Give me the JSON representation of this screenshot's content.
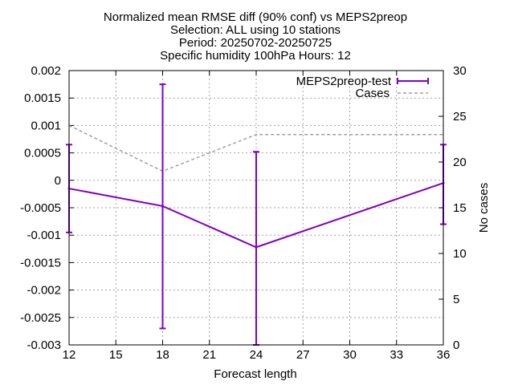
{
  "chart_data": {
    "type": "line",
    "title_lines": [
      "Normalized mean RMSE diff (90% conf) vs MEPS2preop",
      "Selection: ALL using    10 stations",
      "Period: 20250702-20250725",
      "Specific humidity 100hPa   Hours: 12"
    ],
    "xlabel": "Forecast length",
    "ylabel": "",
    "y2label": "No cases",
    "xlim": [
      12,
      36
    ],
    "ylim": [
      -0.003,
      0.002
    ],
    "y2lim": [
      0,
      30
    ],
    "x_ticks": [
      12,
      15,
      18,
      21,
      24,
      27,
      30,
      33,
      36
    ],
    "x_tick_labels": [
      "12",
      "15",
      "18",
      "21",
      "24",
      "27",
      "30",
      "33",
      "36"
    ],
    "y_ticks": [
      0.002,
      0.0015,
      0.001,
      0.0005,
      0,
      -0.0005,
      -0.001,
      -0.0015,
      -0.002,
      -0.0025,
      -0.003
    ],
    "y_tick_labels": [
      "0.002",
      "0.0015",
      "0.001",
      "0.0005",
      "0",
      "-0.0005",
      "-0.001",
      "-0.0015",
      "-0.002",
      "-0.0025",
      "-0.003"
    ],
    "y2_ticks": [
      30,
      25,
      20,
      15,
      10,
      5,
      0
    ],
    "y2_tick_labels": [
      "30",
      "25",
      "20",
      "15",
      "10",
      "5",
      "0"
    ],
    "grid": true,
    "legend_position": "top-right",
    "series": [
      {
        "name": "MEPS2preop-test",
        "axis": "y",
        "color": "#8000c0",
        "style": "errorbars",
        "x": [
          12,
          18,
          24,
          36
        ],
        "values": [
          -0.00015,
          -0.00047,
          -0.00122,
          -5e-05
        ],
        "lower": [
          -0.00095,
          -0.0027,
          -0.003,
          -0.0008
        ],
        "upper": [
          0.00065,
          0.00175,
          0.00052,
          0.00065
        ]
      },
      {
        "name": "Cases",
        "axis": "y2",
        "color": "#a0a0a0",
        "style": "dashed",
        "x": [
          12,
          18,
          24,
          36
        ],
        "values": [
          24,
          19,
          23,
          23
        ]
      }
    ]
  }
}
